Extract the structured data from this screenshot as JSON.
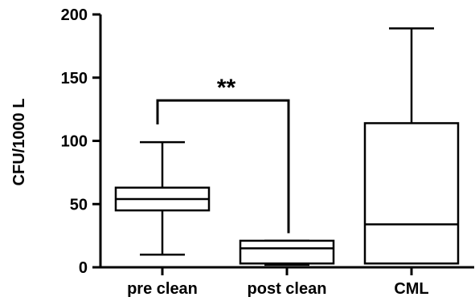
{
  "chart_data": {
    "type": "box",
    "ylabel": "CFU/1000 L",
    "xlabel": "",
    "ylim": [
      0,
      200
    ],
    "yticks": [
      0,
      50,
      100,
      150,
      200
    ],
    "categories": [
      "pre clean",
      "post clean",
      "CML"
    ],
    "boxes": [
      {
        "category": "pre clean",
        "min": 10,
        "q1": 45,
        "median": 54,
        "q3": 63,
        "max": 99
      },
      {
        "category": "post clean",
        "min": 2,
        "q1": 3,
        "median": 15,
        "q3": 21,
        "max": 21
      },
      {
        "category": "CML",
        "min": 3,
        "q1": 3,
        "median": 34,
        "q3": 114,
        "max": 189
      }
    ],
    "significance": {
      "from": "pre clean",
      "to": "post clean",
      "label": "**",
      "y": 132
    }
  }
}
